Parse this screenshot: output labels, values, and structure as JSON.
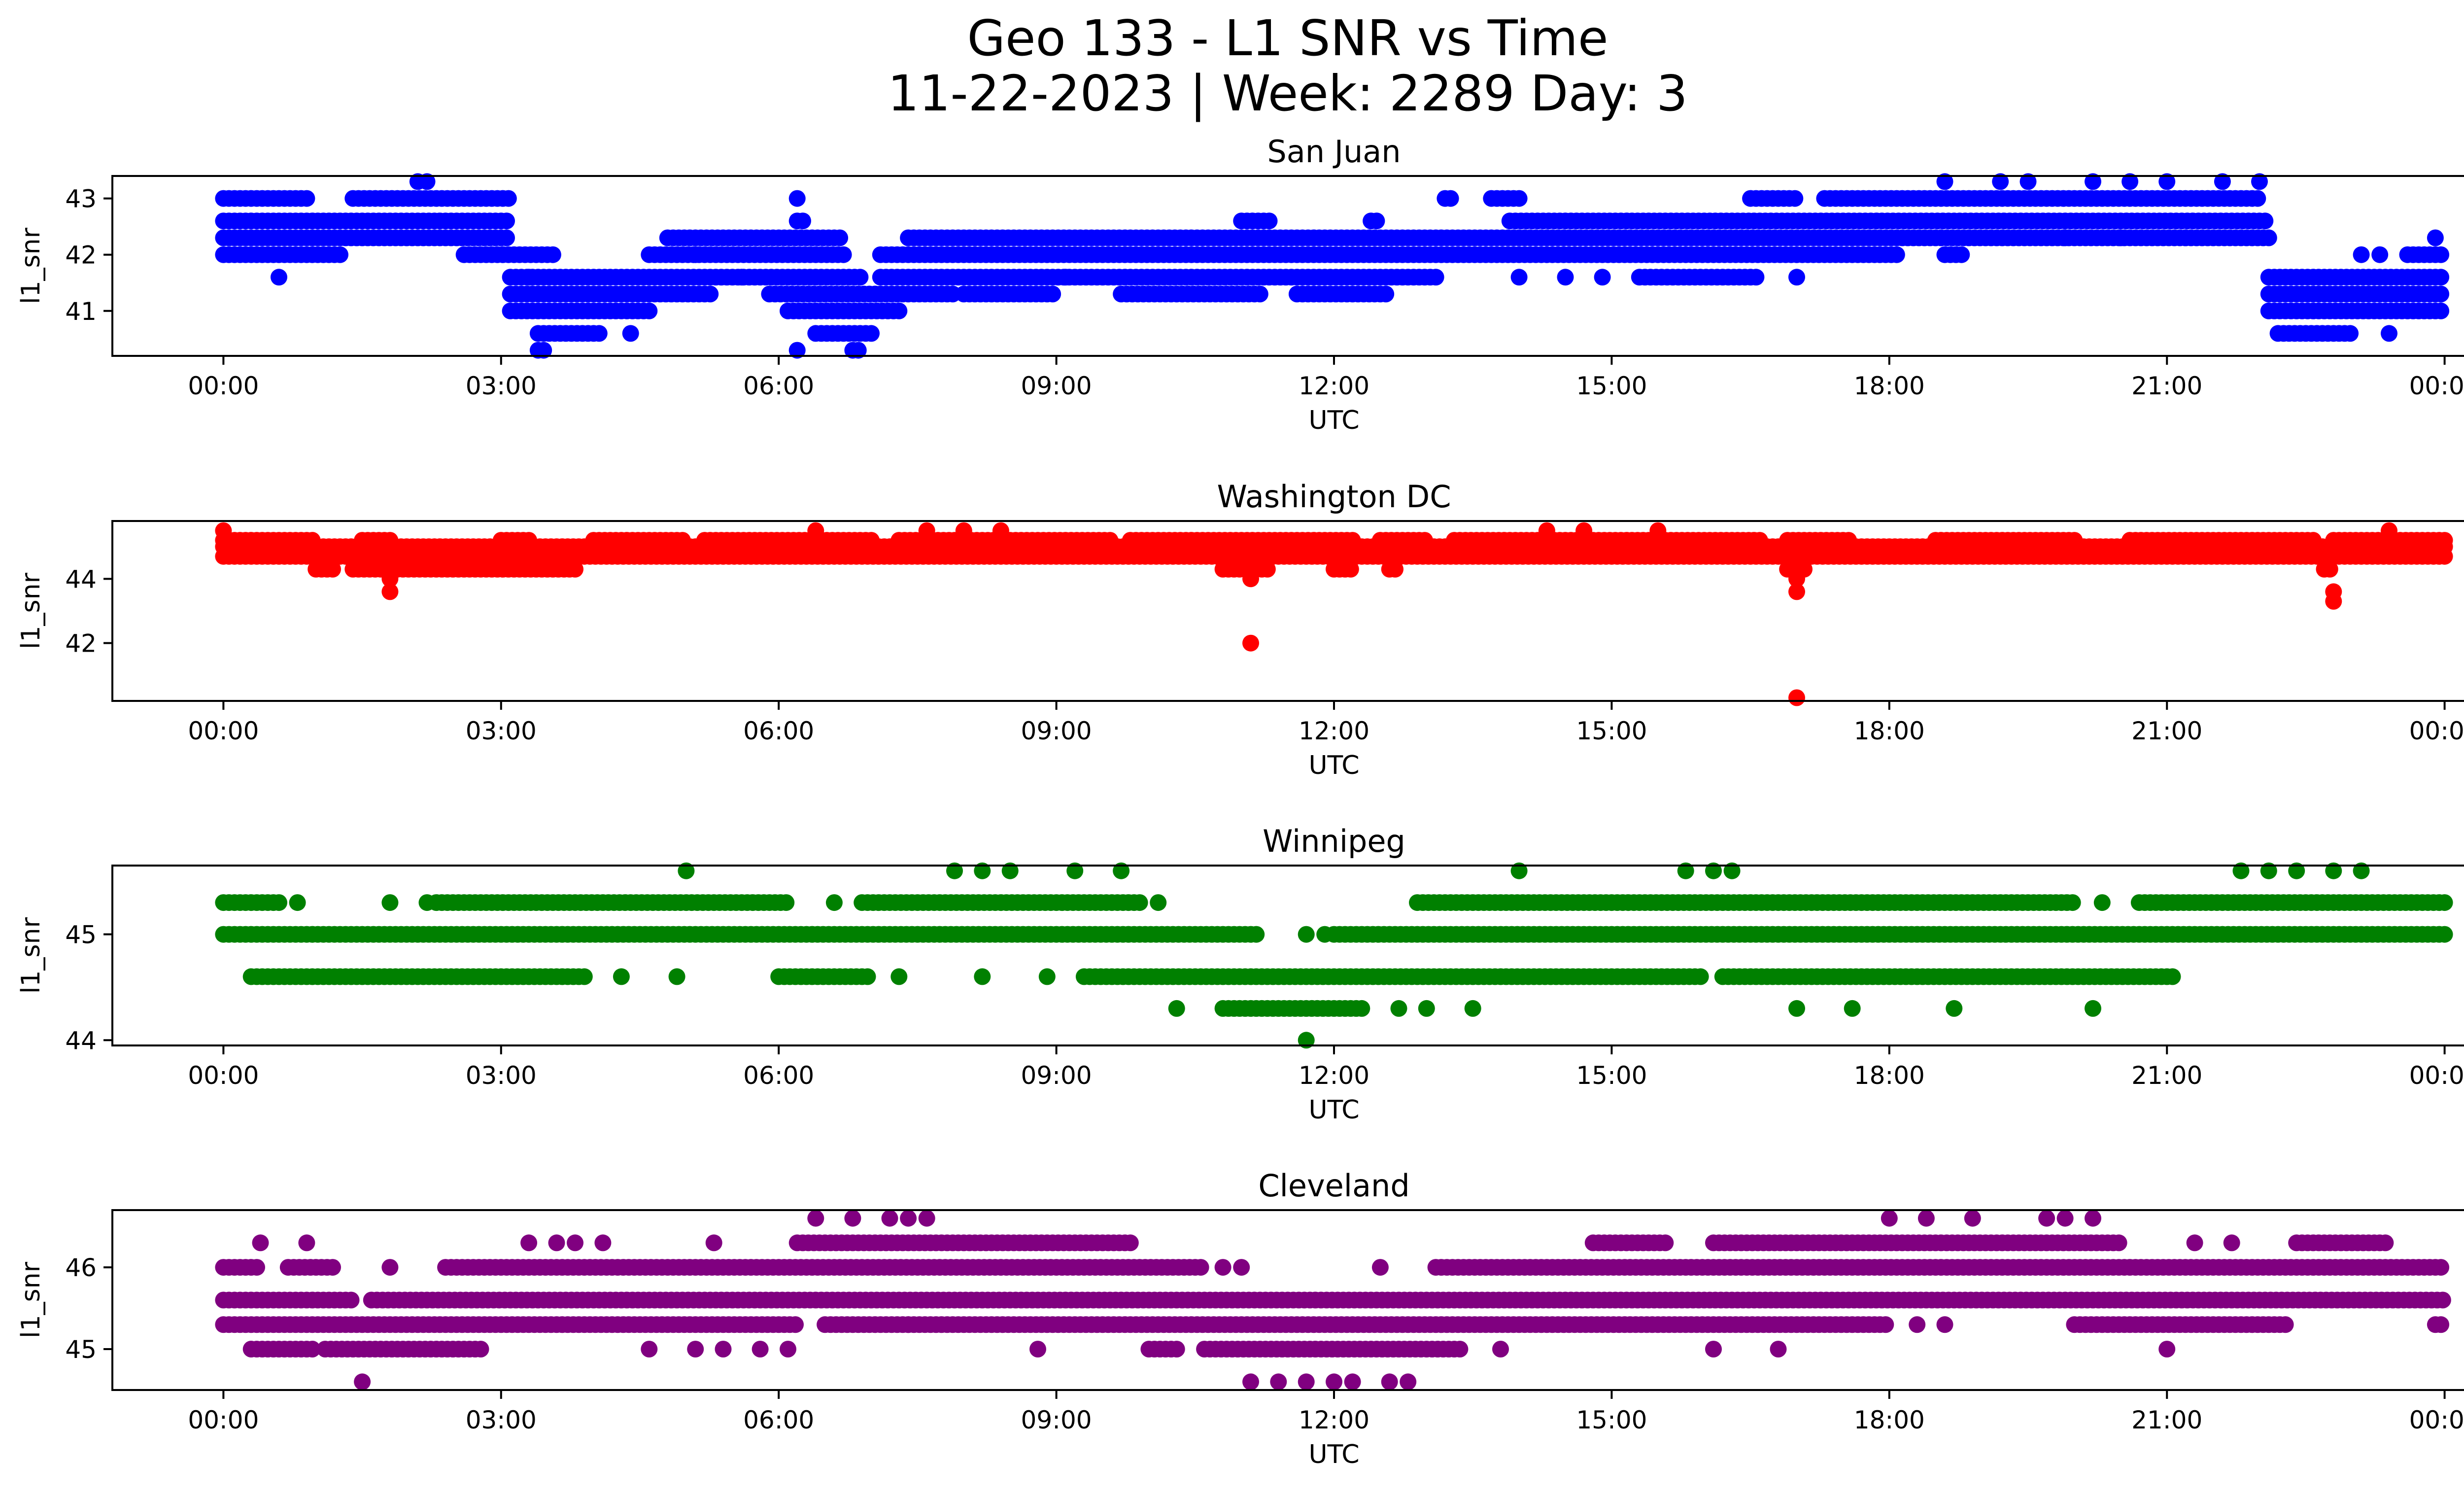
{
  "figure": {
    "title_line1": "Geo 133 - L1 SNR vs Time",
    "title_line2": "11-22-2023 | Week: 2289 Day: 3"
  },
  "chart_data": [
    {
      "type": "scatter",
      "title": "San Juan",
      "xlabel": "UTC",
      "ylabel": "l1_snr",
      "color": "#0000ff",
      "x_unit": "hours UTC",
      "xlim": [
        -1.2,
        25.2
      ],
      "ylim": [
        40.2,
        43.4
      ],
      "x_ticks": [
        0,
        3,
        6,
        9,
        12,
        15,
        18,
        21,
        24
      ],
      "x_tick_labels": [
        "00:00",
        "03:00",
        "06:00",
        "09:00",
        "12:00",
        "15:00",
        "18:00",
        "21:00",
        "00:00"
      ],
      "y_ticks": [
        41,
        42,
        43
      ],
      "y_tick_labels": [
        "41",
        "42",
        "43"
      ],
      "bands": [
        {
          "y": 43.0,
          "x": [
            [
              0,
              0.9
            ],
            [
              1.4,
              3.1
            ],
            [
              13.2,
              13.3
            ],
            [
              13.7,
              14.0
            ],
            [
              16.5,
              17.0
            ],
            [
              17.3,
              22.0
            ]
          ]
        },
        {
          "y": 42.6,
          "x": [
            [
              0,
              3.1
            ],
            [
              6.2,
              6.3
            ],
            [
              11.0,
              11.3
            ],
            [
              12.4,
              12.5
            ],
            [
              13.9,
              22.1
            ]
          ]
        },
        {
          "y": 42.3,
          "x": [
            [
              0,
              3.1
            ],
            [
              4.8,
              6.7
            ],
            [
              7.4,
              22.1
            ]
          ]
        },
        {
          "y": 42.0,
          "x": [
            [
              0,
              1.3
            ],
            [
              2.6,
              3.6
            ],
            [
              4.6,
              6.7
            ],
            [
              7.1,
              18.1
            ],
            [
              18.6,
              18.8
            ],
            [
              23.6,
              24.0
            ]
          ]
        },
        {
          "y": 41.6,
          "x": [
            [
              3.1,
              6.9
            ],
            [
              7.1,
              13.1
            ],
            [
              15.3,
              16.6
            ],
            [
              22.1,
              24.0
            ]
          ]
        },
        {
          "y": 41.3,
          "x": [
            [
              3.1,
              5.3
            ],
            [
              5.9,
              7.9
            ],
            [
              8.0,
              9.0
            ],
            [
              9.7,
              11.2
            ],
            [
              11.6,
              12.6
            ],
            [
              22.1,
              24.0
            ]
          ]
        },
        {
          "y": 41.0,
          "x": [
            [
              3.1,
              4.6
            ],
            [
              6.1,
              7.3
            ],
            [
              22.1,
              24.0
            ]
          ]
        },
        {
          "y": 40.6,
          "x": [
            [
              3.4,
              4.1
            ],
            [
              6.4,
              7.0
            ],
            [
              22.2,
              23.0
            ]
          ]
        },
        {
          "y": 40.3,
          "x": [
            [
              3.4,
              3.5
            ],
            [
              6.8,
              6.9
            ]
          ]
        }
      ],
      "points": [
        [
          2.1,
          43.3
        ],
        [
          2.2,
          43.3
        ],
        [
          6.2,
          43.0
        ],
        [
          0.6,
          41.6
        ],
        [
          5.6,
          41.6
        ],
        [
          6.2,
          40.3
        ],
        [
          18.6,
          43.3
        ],
        [
          19.2,
          43.3
        ],
        [
          19.5,
          43.3
        ],
        [
          20.2,
          43.3
        ],
        [
          20.6,
          43.3
        ],
        [
          21.0,
          43.3
        ],
        [
          21.6,
          43.3
        ],
        [
          22.0,
          43.3
        ],
        [
          14.3,
          42.3
        ],
        [
          17.6,
          42.3
        ],
        [
          19.9,
          42.3
        ],
        [
          20.5,
          42.3
        ],
        [
          21.2,
          42.3
        ],
        [
          3.3,
          41.6
        ],
        [
          9.1,
          41.6
        ],
        [
          14.0,
          41.6
        ],
        [
          14.5,
          41.6
        ],
        [
          14.9,
          41.6
        ],
        [
          17.0,
          41.6
        ],
        [
          4.4,
          40.6
        ],
        [
          5.1,
          42.0
        ],
        [
          23.1,
          42.0
        ],
        [
          23.3,
          42.0
        ],
        [
          23.9,
          42.3
        ],
        [
          23.4,
          40.6
        ]
      ]
    },
    {
      "type": "scatter",
      "title": "Washington DC",
      "xlabel": "UTC",
      "ylabel": "l1_snr",
      "color": "#ff0000",
      "x_unit": "hours UTC",
      "xlim": [
        -1.2,
        25.2
      ],
      "ylim": [
        40.2,
        45.8
      ],
      "x_ticks": [
        0,
        3,
        6,
        9,
        12,
        15,
        18,
        21,
        24
      ],
      "x_tick_labels": [
        "00:00",
        "03:00",
        "06:00",
        "09:00",
        "12:00",
        "15:00",
        "18:00",
        "21:00",
        "00:00"
      ],
      "y_ticks": [
        42,
        44
      ],
      "y_tick_labels": [
        "42",
        "44"
      ],
      "bands": [
        {
          "y": 45.2,
          "x": [
            [
              0,
              1.0
            ],
            [
              1.5,
              1.8
            ],
            [
              3.0,
              3.3
            ],
            [
              4.0,
              5.0
            ],
            [
              5.2,
              7.0
            ],
            [
              7.3,
              9.6
            ],
            [
              9.8,
              12.2
            ],
            [
              12.5,
              13.0
            ],
            [
              13.3,
              16.6
            ],
            [
              16.9,
              17.6
            ],
            [
              18.5,
              20.0
            ],
            [
              20.6,
              22.6
            ],
            [
              22.8,
              24.0
            ]
          ]
        },
        {
          "y": 45.0,
          "x": [
            [
              0,
              24.0
            ]
          ]
        },
        {
          "y": 44.7,
          "x": [
            [
              0,
              24.0
            ]
          ]
        },
        {
          "y": 44.3,
          "x": [
            [
              1.0,
              1.2
            ],
            [
              1.4,
              3.8
            ],
            [
              10.8,
              11.3
            ],
            [
              12.0,
              12.2
            ],
            [
              12.6,
              12.7
            ],
            [
              16.9,
              17.1
            ],
            [
              22.7,
              22.8
            ]
          ]
        }
      ],
      "points": [
        [
          0.0,
          45.5
        ],
        [
          6.4,
          45.5
        ],
        [
          7.6,
          45.5
        ],
        [
          8.0,
          45.5
        ],
        [
          8.4,
          45.5
        ],
        [
          14.3,
          45.5
        ],
        [
          14.7,
          45.5
        ],
        [
          15.5,
          45.5
        ],
        [
          23.4,
          45.5
        ],
        [
          1.8,
          44.0
        ],
        [
          1.8,
          43.6
        ],
        [
          11.1,
          44.0
        ],
        [
          17.0,
          44.0
        ],
        [
          17.0,
          43.6
        ],
        [
          22.8,
          43.6
        ],
        [
          22.8,
          43.3
        ],
        [
          11.1,
          42.0
        ],
        [
          17.0,
          40.3
        ]
      ]
    },
    {
      "type": "scatter",
      "title": "Winnipeg",
      "xlabel": "UTC",
      "ylabel": "l1_snr",
      "color": "#008000",
      "x_unit": "hours UTC",
      "xlim": [
        -1.2,
        25.2
      ],
      "ylim": [
        43.95,
        45.65
      ],
      "x_ticks": [
        0,
        3,
        6,
        9,
        12,
        15,
        18,
        21,
        24
      ],
      "x_tick_labels": [
        "00:00",
        "03:00",
        "06:00",
        "09:00",
        "12:00",
        "15:00",
        "18:00",
        "21:00",
        "00:00"
      ],
      "y_ticks": [
        44,
        45
      ],
      "y_tick_labels": [
        "44",
        "45"
      ],
      "bands": [
        {
          "y": 45.3,
          "x": [
            [
              0,
              0.6
            ],
            [
              2.3,
              6.1
            ],
            [
              6.9,
              9.9
            ],
            [
              12.9,
              20.0
            ],
            [
              20.7,
              24.0
            ]
          ]
        },
        {
          "y": 45.0,
          "x": [
            [
              0,
              11.2
            ],
            [
              12.0,
              24.0
            ]
          ]
        },
        {
          "y": 44.6,
          "x": [
            [
              0.3,
              3.9
            ],
            [
              6.0,
              7.0
            ],
            [
              9.3,
              16.0
            ],
            [
              16.2,
              21.1
            ]
          ]
        },
        {
          "y": 44.3,
          "x": [
            [
              10.8,
              12.3
            ]
          ]
        }
      ],
      "points": [
        [
          0.8,
          45.3
        ],
        [
          1.8,
          45.3
        ],
        [
          2.2,
          45.3
        ],
        [
          6.6,
          45.3
        ],
        [
          10.1,
          45.3
        ],
        [
          20.3,
          45.3
        ],
        [
          11.7,
          45.0
        ],
        [
          11.9,
          45.0
        ],
        [
          4.3,
          44.6
        ],
        [
          4.9,
          44.6
        ],
        [
          8.2,
          44.6
        ],
        [
          8.9,
          44.6
        ],
        [
          7.3,
          44.6
        ],
        [
          10.3,
          44.3
        ],
        [
          12.7,
          44.3
        ],
        [
          13.0,
          44.3
        ],
        [
          13.5,
          44.3
        ],
        [
          17.0,
          44.3
        ],
        [
          17.6,
          44.3
        ],
        [
          18.7,
          44.3
        ],
        [
          20.2,
          44.3
        ],
        [
          11.7,
          44.0
        ],
        [
          5.0,
          45.6
        ],
        [
          7.9,
          45.6
        ],
        [
          8.2,
          45.6
        ],
        [
          8.5,
          45.6
        ],
        [
          9.2,
          45.6
        ],
        [
          9.7,
          45.6
        ],
        [
          14.0,
          45.6
        ],
        [
          15.8,
          45.6
        ],
        [
          16.1,
          45.6
        ],
        [
          16.3,
          45.6
        ],
        [
          21.8,
          45.6
        ],
        [
          22.1,
          45.6
        ],
        [
          22.4,
          45.6
        ],
        [
          22.8,
          45.6
        ],
        [
          23.1,
          45.6
        ]
      ]
    },
    {
      "type": "scatter",
      "title": "Cleveland",
      "xlabel": "UTC",
      "ylabel": "l1_snr",
      "color": "#800080",
      "x_unit": "hours UTC",
      "xlim": [
        -1.2,
        25.2
      ],
      "ylim": [
        44.5,
        46.7
      ],
      "x_ticks": [
        0,
        3,
        6,
        9,
        12,
        15,
        18,
        21,
        24
      ],
      "x_tick_labels": [
        "00:00",
        "03:00",
        "06:00",
        "09:00",
        "12:00",
        "15:00",
        "18:00",
        "21:00",
        "00:00"
      ],
      "y_ticks": [
        45,
        46
      ],
      "y_tick_labels": [
        "45",
        "46"
      ],
      "bands": [
        {
          "y": 46.3,
          "x": [
            [
              6.2,
              9.8
            ],
            [
              14.8,
              15.6
            ],
            [
              16.1,
              20.5
            ],
            [
              22.4,
              23.4
            ]
          ]
        },
        {
          "y": 46.0,
          "x": [
            [
              0,
              0.4
            ],
            [
              0.7,
              1.2
            ],
            [
              2.4,
              10.6
            ],
            [
              13.1,
              24.0
            ]
          ]
        },
        {
          "y": 45.6,
          "x": [
            [
              0,
              1.4
            ],
            [
              1.6,
              24.0
            ]
          ]
        },
        {
          "y": 45.3,
          "x": [
            [
              0,
              6.2
            ],
            [
              6.5,
              18.0
            ],
            [
              20.0,
              22.3
            ],
            [
              23.9,
              24.0
            ]
          ]
        },
        {
          "y": 45.0,
          "x": [
            [
              0.3,
              1.0
            ],
            [
              1.1,
              2.8
            ],
            [
              10.0,
              10.3
            ],
            [
              10.6,
              13.4
            ]
          ]
        }
      ],
      "points": [
        [
          0.4,
          46.3
        ],
        [
          0.9,
          46.3
        ],
        [
          3.3,
          46.3
        ],
        [
          3.6,
          46.3
        ],
        [
          3.8,
          46.3
        ],
        [
          4.1,
          46.3
        ],
        [
          5.3,
          46.3
        ],
        [
          21.3,
          46.3
        ],
        [
          21.7,
          46.3
        ],
        [
          6.4,
          46.6
        ],
        [
          6.8,
          46.6
        ],
        [
          7.2,
          46.6
        ],
        [
          7.4,
          46.6
        ],
        [
          7.6,
          46.6
        ],
        [
          18.0,
          46.6
        ],
        [
          18.4,
          46.6
        ],
        [
          18.9,
          46.6
        ],
        [
          19.7,
          46.6
        ],
        [
          19.9,
          46.6
        ],
        [
          20.2,
          46.6
        ],
        [
          1.8,
          46.0
        ],
        [
          12.5,
          46.0
        ],
        [
          11.0,
          46.0
        ],
        [
          10.8,
          46.0
        ],
        [
          4.6,
          45.0
        ],
        [
          5.1,
          45.0
        ],
        [
          5.4,
          45.0
        ],
        [
          5.8,
          45.0
        ],
        [
          6.1,
          45.0
        ],
        [
          8.8,
          45.0
        ],
        [
          13.8,
          45.0
        ],
        [
          16.1,
          45.0
        ],
        [
          16.8,
          45.0
        ],
        [
          21.0,
          45.0
        ],
        [
          18.3,
          45.3
        ],
        [
          18.6,
          45.3
        ],
        [
          7.4,
          45.3
        ],
        [
          1.5,
          44.6
        ],
        [
          11.1,
          44.6
        ],
        [
          11.4,
          44.6
        ],
        [
          11.7,
          44.6
        ],
        [
          12.0,
          44.6
        ],
        [
          12.2,
          44.6
        ],
        [
          12.6,
          44.6
        ],
        [
          12.8,
          44.6
        ]
      ]
    }
  ]
}
